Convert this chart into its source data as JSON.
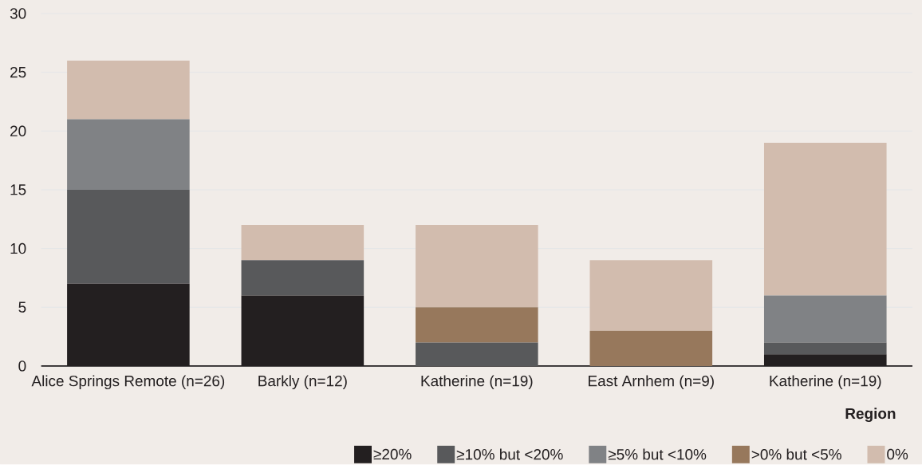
{
  "chart_data": {
    "type": "bar",
    "stacked": true,
    "xlabel": "Region",
    "categories": [
      "Alice Springs Remote (n=26)",
      "Barkly  (n=12)",
      "Katherine  (n=19)",
      "East Arnhem  (n=9)",
      "Katherine  (n=19)"
    ],
    "series": [
      {
        "name": "≥20%",
        "color": "#231f20",
        "values": [
          7,
          6,
          0,
          0,
          1
        ]
      },
      {
        "name": "≥10% but <20%",
        "color": "#58595b",
        "values": [
          8,
          3,
          2,
          0,
          1
        ]
      },
      {
        "name": "≥5% but <10%",
        "color": "#808285",
        "values": [
          6,
          0,
          0,
          0,
          4
        ]
      },
      {
        "name": ">0% but <5%",
        "color": "#97785c",
        "values": [
          0,
          0,
          3,
          3,
          0
        ]
      },
      {
        "name": "0%",
        "color": "#d2bcae",
        "values": [
          5,
          3,
          7,
          6,
          13
        ]
      }
    ],
    "ylim": [
      0,
      30
    ],
    "yticks": [
      0,
      5,
      10,
      15,
      20,
      25,
      30
    ],
    "grid": "y",
    "legend": "bottom right"
  }
}
